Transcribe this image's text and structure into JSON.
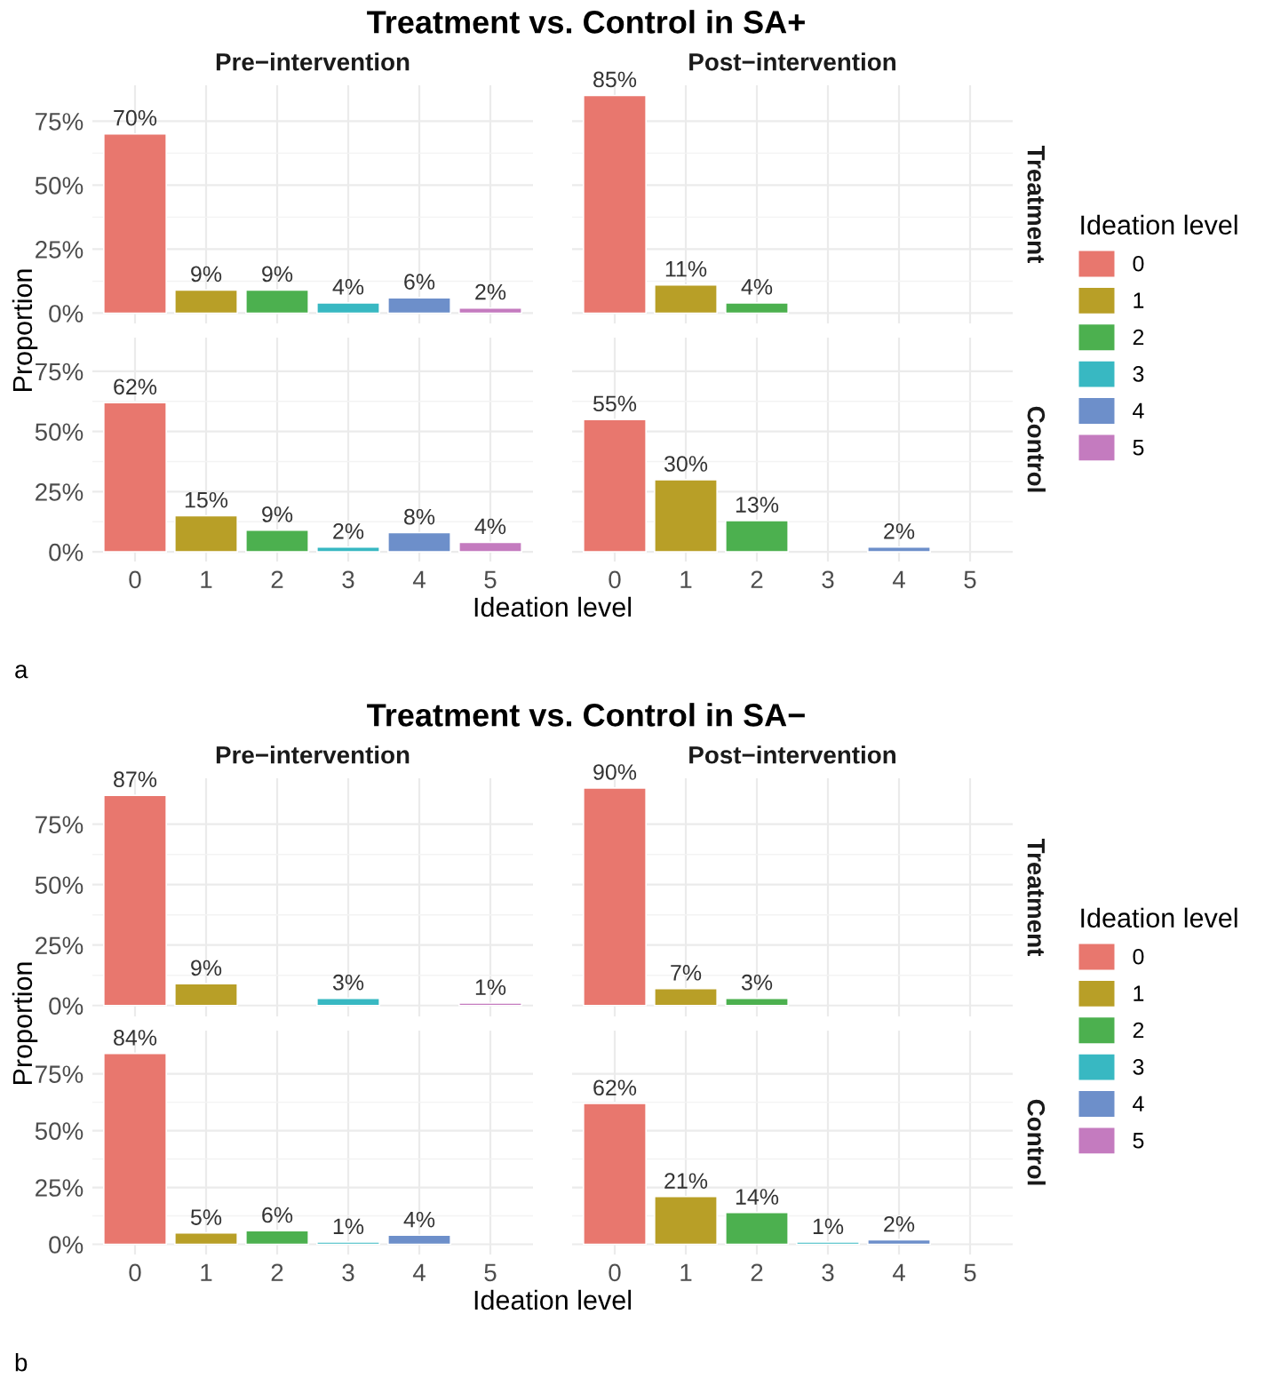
{
  "chart_data": [
    {
      "type": "bar",
      "title": "Pre−intervention",
      "annotations": [
        "Treatment vs. Control in SA+"
      ],
      "categories": [
        null,
        null,
        null,
        null,
        null,
        null
      ],
      "ylim": [
        -4,
        89
      ],
      "yticks": [
        {
          "value": 0,
          "label": "0%"
        },
        {
          "value": 25,
          "label": "25%"
        },
        {
          "value": 50,
          "label": "50%"
        },
        {
          "value": 75,
          "label": "75%"
        }
      ],
      "grid": true,
      "tick_labels": "y",
      "series": [
        {
          "color": "#e8776e",
          "values": [
            70,
            null,
            null,
            null,
            null,
            null
          ],
          "value_labels": [
            "70%",
            null,
            null,
            null,
            null,
            null
          ]
        },
        {
          "color": "#b89f27",
          "values": [
            null,
            9,
            null,
            null,
            null,
            null
          ],
          "value_labels": [
            null,
            "9%",
            null,
            null,
            null,
            null
          ]
        },
        {
          "color": "#4cb04f",
          "values": [
            null,
            null,
            9,
            null,
            null,
            null
          ],
          "value_labels": [
            null,
            null,
            "9%",
            null,
            null,
            null
          ]
        },
        {
          "color": "#38b8c2",
          "values": [
            null,
            null,
            null,
            4,
            null,
            null
          ],
          "value_labels": [
            null,
            null,
            null,
            "4%",
            null,
            null
          ]
        },
        {
          "color": "#6d8fca",
          "values": [
            null,
            null,
            null,
            null,
            6,
            null
          ],
          "value_labels": [
            null,
            null,
            null,
            null,
            "6%",
            null
          ]
        },
        {
          "color": "#c47bbf",
          "values": [
            null,
            null,
            null,
            null,
            null,
            2
          ],
          "value_labels": [
            null,
            null,
            null,
            null,
            null,
            "2%"
          ]
        }
      ]
    },
    {
      "type": "bar",
      "title": "Post−intervention",
      "annotations": [
        "Treatment"
      ],
      "categories": [
        "0",
        "1",
        "2",
        "3",
        "4",
        "5"
      ],
      "ylim": [
        -4,
        89
      ],
      "yticks": [
        {
          "value": 0,
          "label": null
        },
        {
          "value": 25,
          "label": null
        },
        {
          "value": 50,
          "label": null
        },
        {
          "value": 75,
          "label": null
        }
      ],
      "grid": true,
      "tick_labels": false,
      "legend": "right",
      "legend_title": "Ideation level",
      "series": [
        {
          "name": "0",
          "color": "#e8776e",
          "values": [
            85,
            null,
            null,
            null,
            null,
            null
          ],
          "value_labels": [
            "85%",
            null,
            null,
            null,
            null,
            null
          ]
        },
        {
          "name": "1",
          "color": "#b89f27",
          "values": [
            null,
            11,
            null,
            null,
            null,
            null
          ],
          "value_labels": [
            null,
            "11%",
            null,
            null,
            null,
            null
          ]
        },
        {
          "name": "2",
          "color": "#4cb04f",
          "values": [
            null,
            null,
            4,
            null,
            null,
            null
          ],
          "value_labels": [
            null,
            null,
            "4%",
            null,
            null,
            null
          ]
        },
        {
          "name": "3",
          "color": "#38b8c2",
          "values": [
            null,
            null,
            null,
            null,
            null,
            null
          ]
        },
        {
          "name": "4",
          "color": "#6d8fca",
          "values": [
            null,
            null,
            null,
            null,
            null,
            null
          ]
        },
        {
          "name": "5",
          "color": "#c47bbf",
          "values": [
            null,
            null,
            null,
            null,
            null,
            null
          ]
        }
      ]
    },
    {
      "type": "bar",
      "xlabel": "Ideation level",
      "ylabel": "Proportion",
      "annotations": [
        "a"
      ],
      "categories": [
        "0",
        "1",
        "2",
        "3",
        "4",
        "5"
      ],
      "ylim": [
        -4,
        89
      ],
      "yticks": [
        {
          "value": 0,
          "label": "0%"
        },
        {
          "value": 25,
          "label": "25%"
        },
        {
          "value": 50,
          "label": "50%"
        },
        {
          "value": 75,
          "label": "75%"
        }
      ],
      "grid": true,
      "series": [
        {
          "color": "#e8776e",
          "values": [
            62,
            null,
            null,
            null,
            null,
            null
          ],
          "value_labels": [
            "62%",
            null,
            null,
            null,
            null,
            null
          ]
        },
        {
          "color": "#b89f27",
          "values": [
            null,
            15,
            null,
            null,
            null,
            null
          ],
          "value_labels": [
            null,
            "15%",
            null,
            null,
            null,
            null
          ]
        },
        {
          "color": "#4cb04f",
          "values": [
            null,
            null,
            9,
            null,
            null,
            null
          ],
          "value_labels": [
            null,
            null,
            "9%",
            null,
            null,
            null
          ]
        },
        {
          "color": "#38b8c2",
          "values": [
            null,
            null,
            null,
            2,
            null,
            null
          ],
          "value_labels": [
            null,
            null,
            null,
            "2%",
            null,
            null
          ]
        },
        {
          "color": "#6d8fca",
          "values": [
            null,
            null,
            null,
            null,
            8,
            null
          ],
          "value_labels": [
            null,
            null,
            null,
            null,
            "8%",
            null
          ]
        },
        {
          "color": "#c47bbf",
          "values": [
            null,
            null,
            null,
            null,
            null,
            4
          ],
          "value_labels": [
            null,
            null,
            null,
            null,
            null,
            "4%"
          ]
        }
      ]
    },
    {
      "type": "bar",
      "annotations": [
        "Control"
      ],
      "categories": [
        "0",
        "1",
        "2",
        "3",
        "4",
        "5"
      ],
      "ylim": [
        -4,
        89
      ],
      "yticks": [
        {
          "value": 0,
          "label": null
        },
        {
          "value": 25,
          "label": null
        },
        {
          "value": 50,
          "label": null
        },
        {
          "value": 75,
          "label": null
        }
      ],
      "grid": true,
      "tick_labels": "x",
      "series": [
        {
          "color": "#e8776e",
          "values": [
            55,
            null,
            null,
            null,
            null,
            null
          ],
          "value_labels": [
            "55%",
            null,
            null,
            null,
            null,
            null
          ]
        },
        {
          "color": "#b89f27",
          "values": [
            null,
            30,
            null,
            null,
            null,
            null
          ],
          "value_labels": [
            null,
            "30%",
            null,
            null,
            null,
            null
          ]
        },
        {
          "color": "#4cb04f",
          "values": [
            null,
            null,
            13,
            null,
            null,
            null
          ],
          "value_labels": [
            null,
            null,
            "13%",
            null,
            null,
            null
          ]
        },
        {
          "color": "#6d8fca",
          "values": [
            null,
            null,
            null,
            null,
            2,
            null
          ],
          "value_labels": [
            null,
            null,
            null,
            null,
            "2%",
            null
          ]
        }
      ]
    },
    {
      "type": "bar",
      "title": "Pre−intervention",
      "annotations": [
        "Treatment vs. Control in SA−"
      ],
      "categories": [
        null,
        null,
        null,
        null,
        null,
        null
      ],
      "ylim": [
        -4.5,
        94
      ],
      "yticks": [
        {
          "value": 0,
          "label": "0%"
        },
        {
          "value": 25,
          "label": "25%"
        },
        {
          "value": 50,
          "label": "50%"
        },
        {
          "value": 75,
          "label": "75%"
        }
      ],
      "grid": true,
      "tick_labels": "y",
      "series": [
        {
          "color": "#e8776e",
          "values": [
            87,
            null,
            null,
            null,
            null,
            null
          ],
          "value_labels": [
            "87%",
            null,
            null,
            null,
            null,
            null
          ]
        },
        {
          "color": "#b89f27",
          "values": [
            null,
            9,
            null,
            null,
            null,
            null
          ],
          "value_labels": [
            null,
            "9%",
            null,
            null,
            null,
            null
          ]
        },
        {
          "color": "#38b8c2",
          "values": [
            null,
            null,
            null,
            3,
            null,
            null
          ],
          "value_labels": [
            null,
            null,
            null,
            "3%",
            null,
            null
          ]
        },
        {
          "color": "#c47bbf",
          "values": [
            null,
            null,
            null,
            null,
            null,
            1
          ],
          "value_labels": [
            null,
            null,
            null,
            null,
            null,
            "1%"
          ]
        }
      ]
    },
    {
      "type": "bar",
      "title": "Post−intervention",
      "annotations": [
        "Treatment"
      ],
      "categories": [
        "0",
        "1",
        "2",
        "3",
        "4",
        "5"
      ],
      "ylim": [
        -4.5,
        94
      ],
      "yticks": [
        {
          "value": 0,
          "label": null
        },
        {
          "value": 25,
          "label": null
        },
        {
          "value": 50,
          "label": null
        },
        {
          "value": 75,
          "label": null
        }
      ],
      "grid": true,
      "tick_labels": false,
      "legend": "right",
      "legend_title": "Ideation level",
      "series": [
        {
          "name": "0",
          "color": "#e8776e",
          "values": [
            90,
            null,
            null,
            null,
            null,
            null
          ],
          "value_labels": [
            "90%",
            null,
            null,
            null,
            null,
            null
          ]
        },
        {
          "name": "1",
          "color": "#b89f27",
          "values": [
            null,
            7,
            null,
            null,
            null,
            null
          ],
          "value_labels": [
            null,
            "7%",
            null,
            null,
            null,
            null
          ]
        },
        {
          "name": "2",
          "color": "#4cb04f",
          "values": [
            null,
            null,
            3,
            null,
            null,
            null
          ],
          "value_labels": [
            null,
            null,
            "3%",
            null,
            null,
            null
          ]
        },
        {
          "name": "3",
          "color": "#38b8c2",
          "values": [
            null,
            null,
            null,
            null,
            null,
            null
          ]
        },
        {
          "name": "4",
          "color": "#6d8fca",
          "values": [
            null,
            null,
            null,
            null,
            null,
            null
          ]
        },
        {
          "name": "5",
          "color": "#c47bbf",
          "values": [
            null,
            null,
            null,
            null,
            null,
            null
          ]
        }
      ]
    },
    {
      "type": "bar",
      "xlabel": "Ideation level",
      "ylabel": "Proportion",
      "annotations": [
        "b"
      ],
      "categories": [
        "0",
        "1",
        "2",
        "3",
        "4",
        "5"
      ],
      "ylim": [
        -4.5,
        94
      ],
      "yticks": [
        {
          "value": 0,
          "label": "0%"
        },
        {
          "value": 25,
          "label": "25%"
        },
        {
          "value": 50,
          "label": "50%"
        },
        {
          "value": 75,
          "label": "75%"
        }
      ],
      "grid": true,
      "series": [
        {
          "color": "#e8776e",
          "values": [
            84,
            null,
            null,
            null,
            null,
            null
          ],
          "value_labels": [
            "84%",
            null,
            null,
            null,
            null,
            null
          ]
        },
        {
          "color": "#b89f27",
          "values": [
            null,
            5,
            null,
            null,
            null,
            null
          ],
          "value_labels": [
            null,
            "5%",
            null,
            null,
            null,
            null
          ]
        },
        {
          "color": "#4cb04f",
          "values": [
            null,
            null,
            6,
            null,
            null,
            null
          ],
          "value_labels": [
            null,
            null,
            "6%",
            null,
            null,
            null
          ]
        },
        {
          "color": "#38b8c2",
          "values": [
            null,
            null,
            null,
            1,
            null,
            null
          ],
          "value_labels": [
            null,
            null,
            null,
            "1%",
            null,
            null
          ]
        },
        {
          "color": "#6d8fca",
          "values": [
            null,
            null,
            null,
            null,
            4,
            null
          ],
          "value_labels": [
            null,
            null,
            null,
            null,
            "4%",
            null
          ]
        }
      ]
    },
    {
      "type": "bar",
      "annotations": [
        "Control"
      ],
      "categories": [
        "0",
        "1",
        "2",
        "3",
        "4",
        "5"
      ],
      "ylim": [
        -4.5,
        94
      ],
      "yticks": [
        {
          "value": 0,
          "label": null
        },
        {
          "value": 25,
          "label": null
        },
        {
          "value": 50,
          "label": null
        },
        {
          "value": 75,
          "label": null
        }
      ],
      "grid": true,
      "tick_labels": "x",
      "series": [
        {
          "color": "#e8776e",
          "values": [
            62,
            null,
            null,
            null,
            null,
            null
          ],
          "value_labels": [
            "62%",
            null,
            null,
            null,
            null,
            null
          ]
        },
        {
          "color": "#b89f27",
          "values": [
            null,
            21,
            null,
            null,
            null,
            null
          ],
          "value_labels": [
            null,
            "21%",
            null,
            null,
            null,
            null
          ]
        },
        {
          "color": "#4cb04f",
          "values": [
            null,
            null,
            14,
            null,
            null,
            null
          ],
          "value_labels": [
            null,
            null,
            "14%",
            null,
            null,
            null
          ]
        },
        {
          "color": "#38b8c2",
          "values": [
            null,
            null,
            null,
            1,
            null,
            null
          ],
          "value_labels": [
            null,
            null,
            null,
            "1%",
            null,
            null
          ]
        },
        {
          "color": "#6d8fca",
          "values": [
            null,
            null,
            null,
            null,
            2,
            null
          ],
          "value_labels": [
            null,
            null,
            null,
            null,
            "2%",
            null
          ]
        }
      ]
    }
  ]
}
